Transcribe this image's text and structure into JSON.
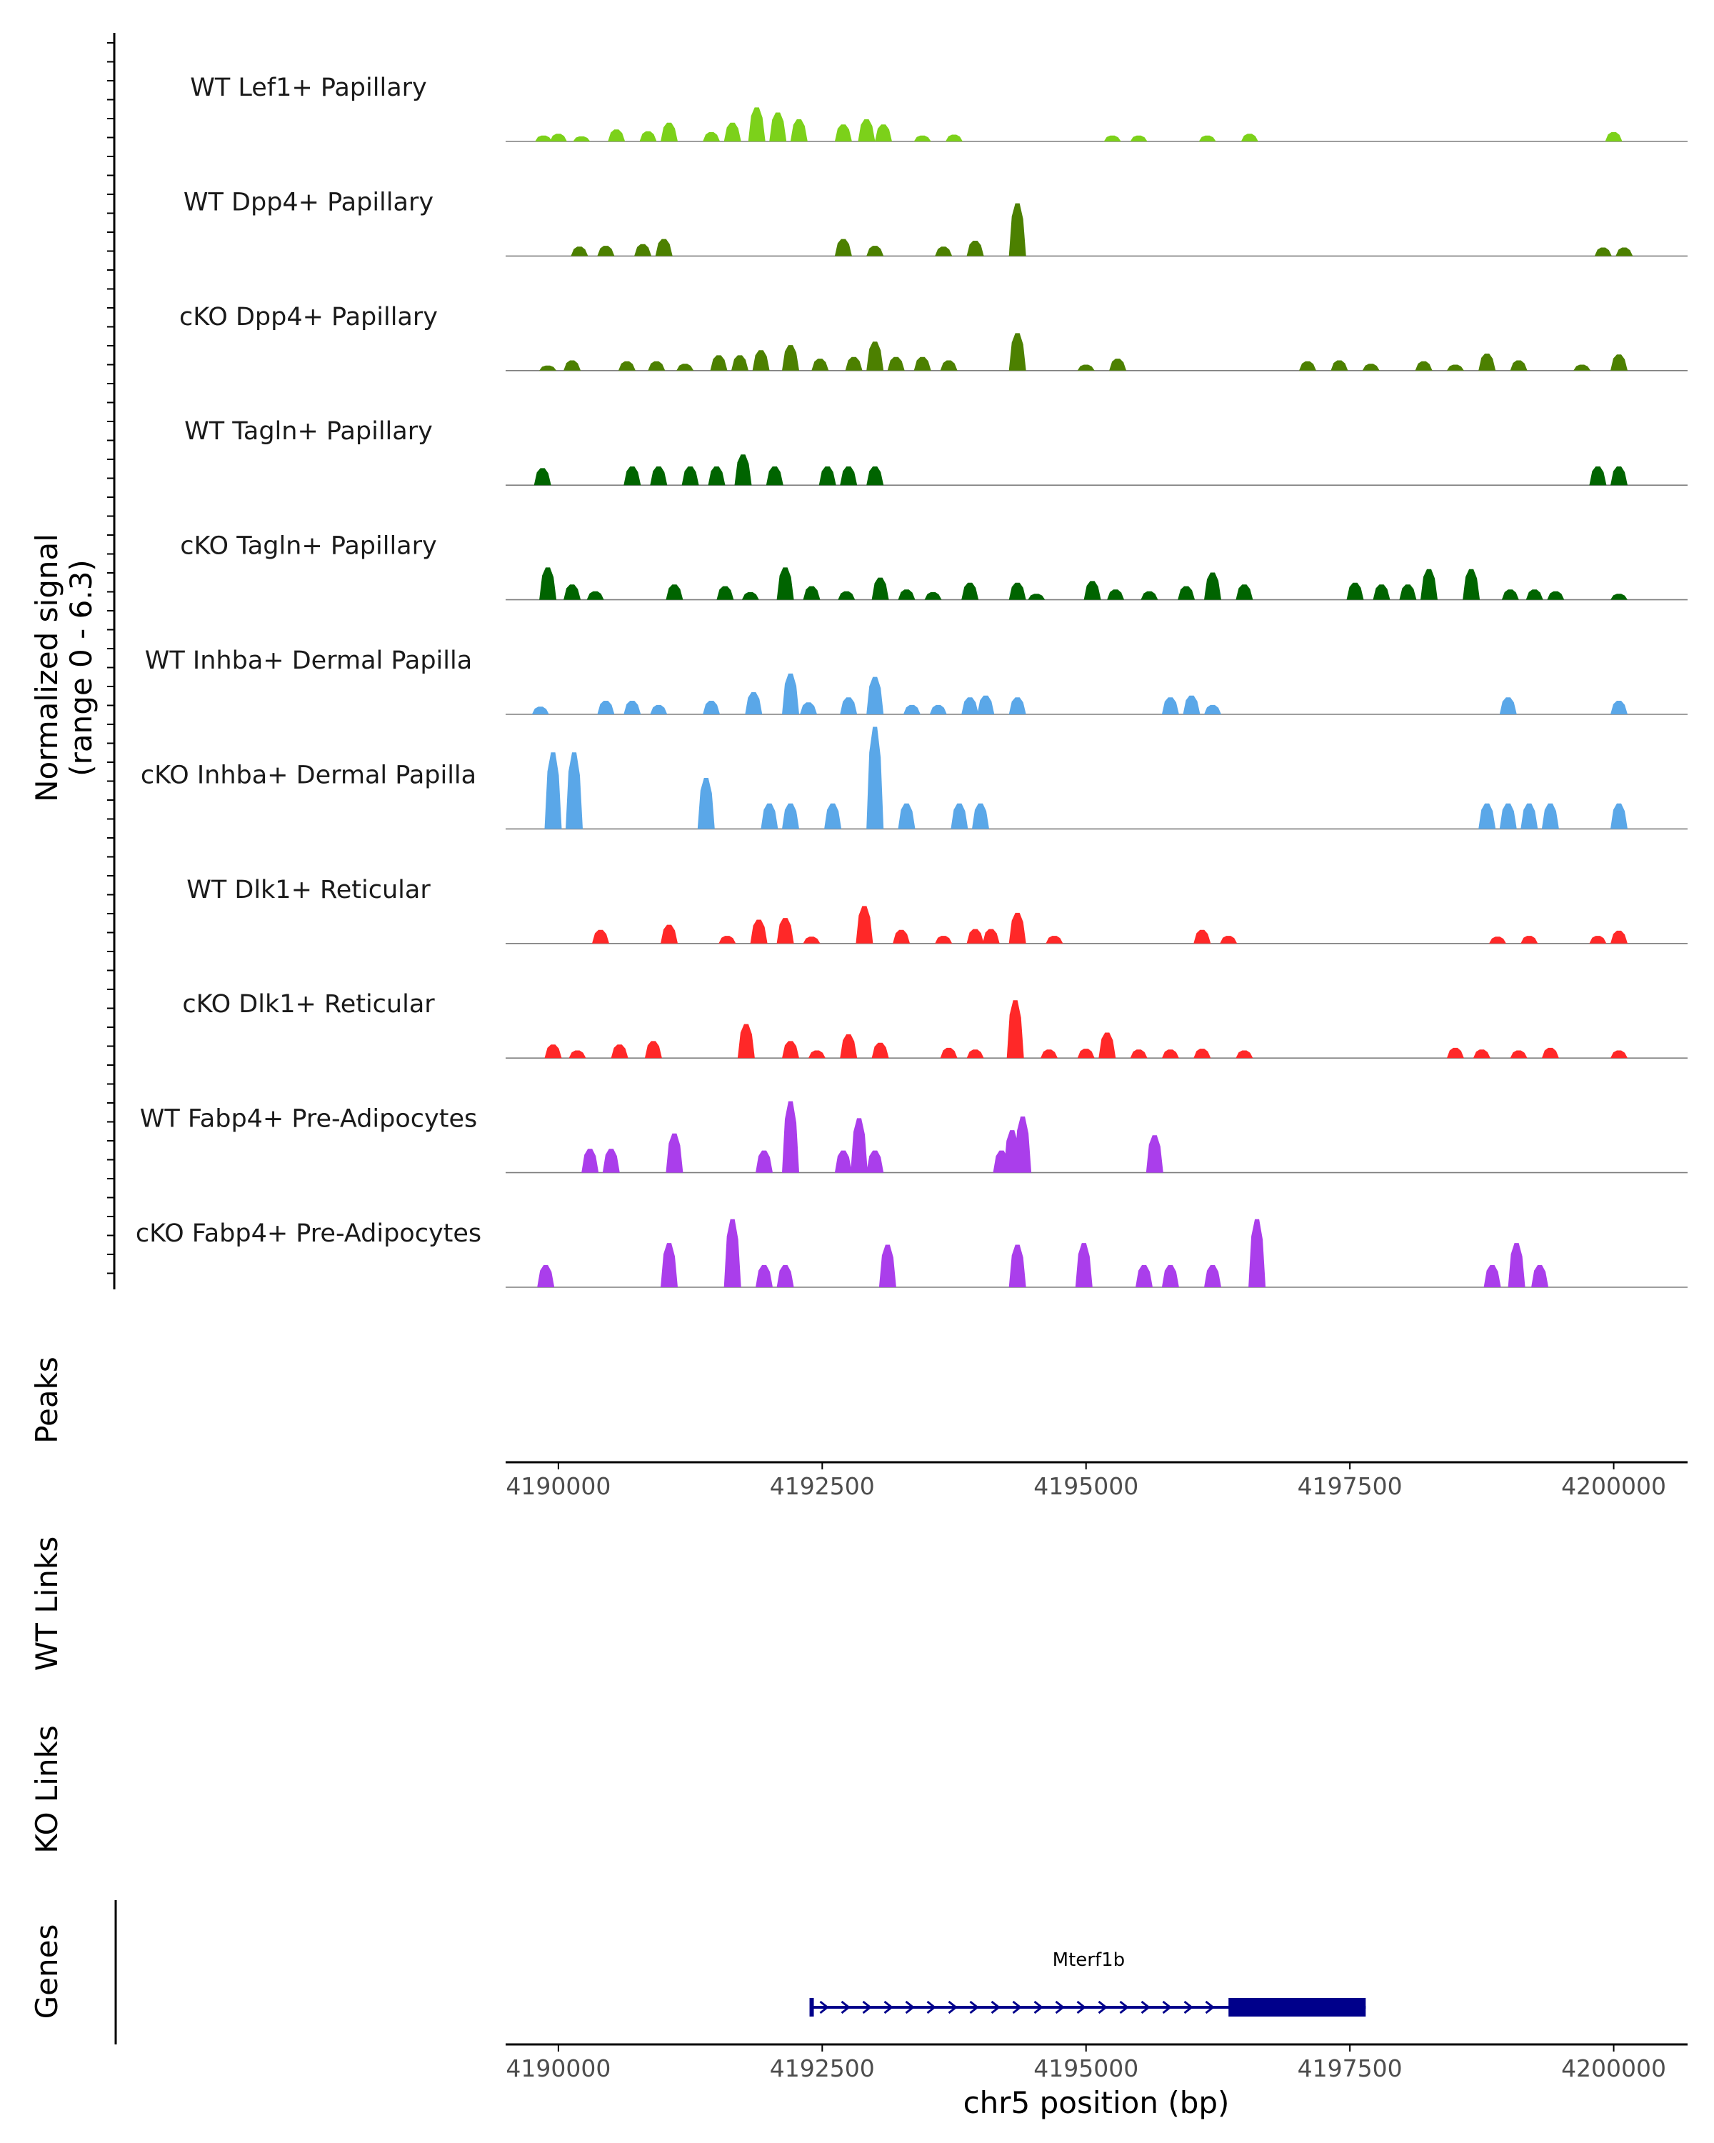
{
  "chart_data": {
    "type": "genome-coverage",
    "region": {
      "chrom": "chr5",
      "start": 4189500,
      "end": 4200700
    },
    "xlabel": "chr5 position (bp)",
    "x_ticks": [
      "4190000",
      "4192500",
      "4195000",
      "4197500",
      "4200000"
    ],
    "x_tick_values": [
      4190000,
      4192500,
      4195000,
      4197500,
      4200000
    ],
    "coverage_ylabel_line1": "Normalized signal",
    "coverage_ylabel_line2": "(range 0 - 6.3)",
    "ymax": 6.3,
    "tracks": [
      {
        "name": "WT Lef1+ Papillary",
        "color": "#7CD11A",
        "peaks": [
          [
            4189860,
            0.35
          ],
          [
            4190000,
            0.45
          ],
          [
            4190220,
            0.3
          ],
          [
            4190550,
            0.7
          ],
          [
            4190850,
            0.6
          ],
          [
            4191050,
            1.1
          ],
          [
            4191450,
            0.55
          ],
          [
            4191650,
            1.1
          ],
          [
            4191880,
            2.0
          ],
          [
            4192080,
            1.7
          ],
          [
            4192280,
            1.3
          ],
          [
            4192700,
            1.0
          ],
          [
            4192920,
            1.3
          ],
          [
            4193080,
            1.0
          ],
          [
            4193450,
            0.35
          ],
          [
            4193750,
            0.4
          ],
          [
            4195250,
            0.35
          ],
          [
            4195500,
            0.35
          ],
          [
            4196150,
            0.35
          ],
          [
            4196550,
            0.45
          ],
          [
            4200000,
            0.55
          ]
        ]
      },
      {
        "name": "WT Dpp4+ Papillary",
        "color": "#4C8000",
        "peaks": [
          [
            4190200,
            0.55
          ],
          [
            4190450,
            0.6
          ],
          [
            4190800,
            0.7
          ],
          [
            4191000,
            1.0
          ],
          [
            4192700,
            1.0
          ],
          [
            4193000,
            0.6
          ],
          [
            4193650,
            0.55
          ],
          [
            4193950,
            0.9
          ],
          [
            4194350,
            3.1
          ],
          [
            4199900,
            0.5
          ],
          [
            4200100,
            0.5
          ]
        ]
      },
      {
        "name": "cKO Dpp4+ Papillary",
        "color": "#4C8000",
        "peaks": [
          [
            4189900,
            0.3
          ],
          [
            4190130,
            0.6
          ],
          [
            4190650,
            0.55
          ],
          [
            4190930,
            0.55
          ],
          [
            4191200,
            0.4
          ],
          [
            4191520,
            0.9
          ],
          [
            4191720,
            0.9
          ],
          [
            4191920,
            1.2
          ],
          [
            4192200,
            1.5
          ],
          [
            4192480,
            0.7
          ],
          [
            4192800,
            0.8
          ],
          [
            4193000,
            1.7
          ],
          [
            4193200,
            0.8
          ],
          [
            4193450,
            0.8
          ],
          [
            4193700,
            0.6
          ],
          [
            4194350,
            2.2
          ],
          [
            4195000,
            0.35
          ],
          [
            4195300,
            0.7
          ],
          [
            4197100,
            0.55
          ],
          [
            4197400,
            0.6
          ],
          [
            4197700,
            0.4
          ],
          [
            4198200,
            0.55
          ],
          [
            4198500,
            0.35
          ],
          [
            4198800,
            1.0
          ],
          [
            4199100,
            0.6
          ],
          [
            4199700,
            0.35
          ],
          [
            4200050,
            0.95
          ]
        ]
      },
      {
        "name": "WT Tagln+ Papillary",
        "color": "#006400",
        "peaks": [
          [
            4189850,
            1.0
          ],
          [
            4190700,
            1.1
          ],
          [
            4190950,
            1.1
          ],
          [
            4191250,
            1.1
          ],
          [
            4191500,
            1.1
          ],
          [
            4191750,
            1.8
          ],
          [
            4192050,
            1.1
          ],
          [
            4192550,
            1.1
          ],
          [
            4192750,
            1.1
          ],
          [
            4193000,
            1.1
          ],
          [
            4199850,
            1.1
          ],
          [
            4200050,
            1.1
          ]
        ]
      },
      {
        "name": "cKO Tagln+ Papillary",
        "color": "#006400",
        "peaks": [
          [
            4189900,
            1.9
          ],
          [
            4190130,
            0.9
          ],
          [
            4190350,
            0.5
          ],
          [
            4191100,
            0.9
          ],
          [
            4191580,
            0.8
          ],
          [
            4191820,
            0.45
          ],
          [
            4192150,
            1.9
          ],
          [
            4192400,
            0.8
          ],
          [
            4192730,
            0.5
          ],
          [
            4193050,
            1.3
          ],
          [
            4193300,
            0.6
          ],
          [
            4193550,
            0.45
          ],
          [
            4193900,
            1.0
          ],
          [
            4194350,
            1.0
          ],
          [
            4194530,
            0.35
          ],
          [
            4195060,
            1.1
          ],
          [
            4195280,
            0.6
          ],
          [
            4195600,
            0.5
          ],
          [
            4195950,
            0.8
          ],
          [
            4196200,
            1.6
          ],
          [
            4196500,
            0.9
          ],
          [
            4197550,
            1.0
          ],
          [
            4197800,
            0.9
          ],
          [
            4198050,
            0.9
          ],
          [
            4198250,
            1.8
          ],
          [
            4198650,
            1.8
          ],
          [
            4199020,
            0.6
          ],
          [
            4199250,
            0.6
          ],
          [
            4199450,
            0.5
          ],
          [
            4200050,
            0.35
          ]
        ]
      },
      {
        "name": "WT Inhba+ Dermal Papilla",
        "color": "#5AA7E8",
        "peaks": [
          [
            4189830,
            0.45
          ],
          [
            4190450,
            0.8
          ],
          [
            4190700,
            0.8
          ],
          [
            4190950,
            0.55
          ],
          [
            4191450,
            0.8
          ],
          [
            4191850,
            1.3
          ],
          [
            4192200,
            2.4
          ],
          [
            4192370,
            0.7
          ],
          [
            4192750,
            1.0
          ],
          [
            4193000,
            2.2
          ],
          [
            4193350,
            0.55
          ],
          [
            4193600,
            0.55
          ],
          [
            4193900,
            1.0
          ],
          [
            4194050,
            1.1
          ],
          [
            4194350,
            1.0
          ],
          [
            4195800,
            1.0
          ],
          [
            4196000,
            1.1
          ],
          [
            4196200,
            0.55
          ],
          [
            4199000,
            1.0
          ],
          [
            4200050,
            0.8
          ]
        ]
      },
      {
        "name": "cKO Inhba+ Dermal Papilla",
        "color": "#5AA7E8",
        "peaks": [
          [
            4189950,
            4.5
          ],
          [
            4190150,
            4.5
          ],
          [
            4191400,
            3.0
          ],
          [
            4192000,
            1.5
          ],
          [
            4192200,
            1.5
          ],
          [
            4192600,
            1.5
          ],
          [
            4193000,
            6.0
          ],
          [
            4193300,
            1.5
          ],
          [
            4193800,
            1.5
          ],
          [
            4194000,
            1.5
          ],
          [
            4198800,
            1.5
          ],
          [
            4199000,
            1.5
          ],
          [
            4199200,
            1.5
          ],
          [
            4199400,
            1.5
          ],
          [
            4200050,
            1.5
          ]
        ]
      },
      {
        "name": "WT Dlk1+ Reticular",
        "color": "#FF2828",
        "peaks": [
          [
            4190400,
            0.8
          ],
          [
            4191050,
            1.1
          ],
          [
            4191600,
            0.45
          ],
          [
            4191900,
            1.4
          ],
          [
            4192150,
            1.5
          ],
          [
            4192400,
            0.4
          ],
          [
            4192900,
            2.2
          ],
          [
            4193250,
            0.8
          ],
          [
            4193650,
            0.45
          ],
          [
            4193950,
            0.85
          ],
          [
            4194100,
            0.85
          ],
          [
            4194350,
            1.8
          ],
          [
            4194700,
            0.45
          ],
          [
            4196100,
            0.8
          ],
          [
            4196350,
            0.45
          ],
          [
            4198900,
            0.4
          ],
          [
            4199200,
            0.45
          ],
          [
            4199850,
            0.45
          ],
          [
            4200050,
            0.75
          ]
        ]
      },
      {
        "name": "cKO Dlk1+ Reticular",
        "color": "#FF2828",
        "peaks": [
          [
            4189950,
            0.8
          ],
          [
            4190180,
            0.45
          ],
          [
            4190580,
            0.8
          ],
          [
            4190900,
            1.0
          ],
          [
            4191780,
            2.0
          ],
          [
            4192200,
            1.0
          ],
          [
            4192450,
            0.45
          ],
          [
            4192750,
            1.4
          ],
          [
            4193050,
            0.9
          ],
          [
            4193700,
            0.6
          ],
          [
            4193950,
            0.5
          ],
          [
            4194330,
            3.4
          ],
          [
            4194650,
            0.5
          ],
          [
            4195000,
            0.55
          ],
          [
            4195200,
            1.5
          ],
          [
            4195500,
            0.5
          ],
          [
            4195800,
            0.5
          ],
          [
            4196100,
            0.55
          ],
          [
            4196500,
            0.45
          ],
          [
            4198500,
            0.6
          ],
          [
            4198750,
            0.5
          ],
          [
            4199100,
            0.45
          ],
          [
            4199400,
            0.6
          ],
          [
            4200050,
            0.45
          ]
        ]
      },
      {
        "name": "WT Fabp4+ Pre-Adipocytes",
        "color": "#AA3EEB",
        "peaks": [
          [
            4190300,
            1.4
          ],
          [
            4190500,
            1.4
          ],
          [
            4191100,
            2.3
          ],
          [
            4191950,
            1.3
          ],
          [
            4192200,
            4.2
          ],
          [
            4192700,
            1.3
          ],
          [
            4192850,
            3.2
          ],
          [
            4193000,
            1.3
          ],
          [
            4194200,
            1.3
          ],
          [
            4194300,
            2.5
          ],
          [
            4194400,
            3.3
          ],
          [
            4195650,
            2.2
          ]
        ]
      },
      {
        "name": "cKO Fabp4+ Pre-Adipocytes",
        "color": "#AA3EEB",
        "peaks": [
          [
            4189880,
            1.3
          ],
          [
            4191050,
            2.6
          ],
          [
            4191650,
            4.0
          ],
          [
            4191950,
            1.3
          ],
          [
            4192150,
            1.3
          ],
          [
            4193120,
            2.5
          ],
          [
            4194350,
            2.5
          ],
          [
            4194980,
            2.6
          ],
          [
            4195550,
            1.3
          ],
          [
            4195800,
            1.3
          ],
          [
            4196200,
            1.3
          ],
          [
            4196620,
            4.0
          ],
          [
            4198850,
            1.3
          ],
          [
            4199080,
            2.6
          ],
          [
            4199300,
            1.3
          ]
        ]
      }
    ],
    "peaks_label": "Peaks",
    "wt_links_label": "WT Links",
    "ko_links_label": "KO Links",
    "genes_label": "Genes",
    "gene": {
      "name": "Mterf1b",
      "start": 4192400,
      "end": 4197650,
      "cds_start": 4196350,
      "cds_end": 4197650,
      "strand": "+",
      "color": "#00008B"
    }
  }
}
